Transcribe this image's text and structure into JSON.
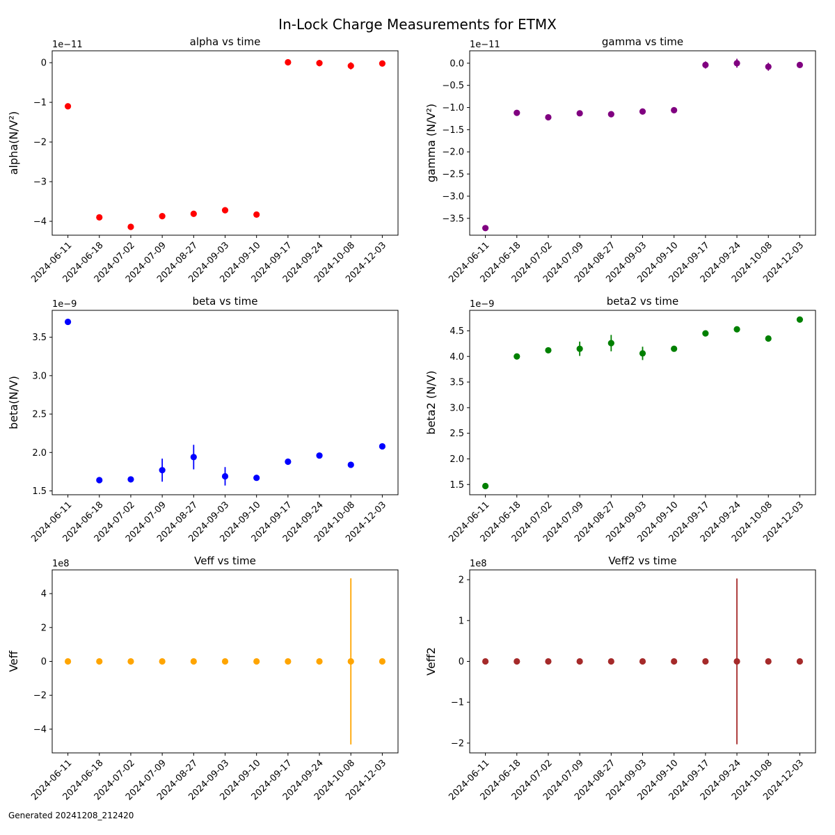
{
  "title": "In-Lock Charge Measurements for ETMX",
  "footer": "Generated 20241208_212420",
  "chart_data": [
    {
      "type": "scatter",
      "title": "alpha vs time",
      "ylabel": "alpha(N/V²)",
      "offset_text": "1e−11",
      "color": "#ff0000",
      "x": [
        "2024-06-11",
        "2024-06-18",
        "2024-07-02",
        "2024-07-09",
        "2024-08-27",
        "2024-09-03",
        "2024-09-10",
        "2024-09-17",
        "2024-09-24",
        "2024-10-08",
        "2024-12-03"
      ],
      "y": [
        -1.1,
        -3.9,
        -4.14,
        -3.87,
        -3.81,
        -3.72,
        -3.83,
        0.01,
        -0.01,
        -0.08,
        -0.02
      ],
      "yerr": [
        0.04,
        0.05,
        0.05,
        0.04,
        0.05,
        0.05,
        0.05,
        0.07,
        0.08,
        0.09,
        0.05
      ],
      "ylim": [
        -4.35,
        0.3
      ],
      "yticks": [
        0,
        -1,
        -2,
        -3,
        -4
      ],
      "ytick_labels": [
        "0",
        "−1",
        "−2",
        "−3",
        "−4"
      ]
    },
    {
      "type": "scatter",
      "title": "gamma vs time",
      "ylabel": "gamma (N/V²)",
      "offset_text": "1e−11",
      "color": "#800080",
      "x": [
        "2024-06-11",
        "2024-06-18",
        "2024-07-02",
        "2024-07-09",
        "2024-08-27",
        "2024-09-03",
        "2024-09-10",
        "2024-09-17",
        "2024-09-24",
        "2024-10-08",
        "2024-12-03"
      ],
      "y": [
        -3.72,
        -1.12,
        -1.22,
        -1.13,
        -1.15,
        -1.09,
        -1.06,
        -0.04,
        0.0,
        -0.08,
        -0.04
      ],
      "yerr": [
        0.03,
        0.03,
        0.03,
        0.03,
        0.03,
        0.03,
        0.03,
        0.08,
        0.1,
        0.09,
        0.04
      ],
      "ylim": [
        -3.88,
        0.28
      ],
      "yticks": [
        0,
        -0.5,
        -1,
        -1.5,
        -2,
        -2.5,
        -3,
        -3.5
      ],
      "ytick_labels": [
        "0.0",
        "−0.5",
        "−1.0",
        "−1.5",
        "−2.0",
        "−2.5",
        "−3.0",
        "−3.5"
      ]
    },
    {
      "type": "scatter",
      "title": "beta vs time",
      "ylabel": "beta(N/V)",
      "offset_text": "1e−9",
      "color": "#0000ff",
      "x": [
        "2024-06-11",
        "2024-06-18",
        "2024-07-02",
        "2024-07-09",
        "2024-08-27",
        "2024-09-03",
        "2024-09-10",
        "2024-09-17",
        "2024-09-24",
        "2024-10-08",
        "2024-12-03"
      ],
      "y": [
        3.7,
        1.64,
        1.65,
        1.77,
        1.94,
        1.69,
        1.67,
        1.88,
        1.96,
        1.84,
        2.08
      ],
      "yerr": [
        0.04,
        0.03,
        0.04,
        0.15,
        0.16,
        0.12,
        0.03,
        0.03,
        0.03,
        0.03,
        0.03
      ],
      "ylim": [
        1.45,
        3.85
      ],
      "yticks": [
        1.5,
        2.0,
        2.5,
        3.0,
        3.5
      ],
      "ytick_labels": [
        "1.5",
        "2.0",
        "2.5",
        "3.0",
        "3.5"
      ]
    },
    {
      "type": "scatter",
      "title": "beta2 vs time",
      "ylabel": "beta2 (N/V)",
      "offset_text": "1e−9",
      "color": "#008000",
      "x": [
        "2024-06-11",
        "2024-06-18",
        "2024-07-02",
        "2024-07-09",
        "2024-08-27",
        "2024-09-03",
        "2024-09-10",
        "2024-09-17",
        "2024-09-24",
        "2024-10-08",
        "2024-12-03"
      ],
      "y": [
        1.47,
        4.0,
        4.12,
        4.15,
        4.26,
        4.06,
        4.15,
        4.45,
        4.53,
        4.35,
        4.72
      ],
      "yerr": [
        0.03,
        0.03,
        0.03,
        0.14,
        0.16,
        0.13,
        0.03,
        0.03,
        0.03,
        0.03,
        0.03
      ],
      "ylim": [
        1.3,
        4.9
      ],
      "yticks": [
        1.5,
        2.0,
        2.5,
        3.0,
        3.5,
        4.0,
        4.5
      ],
      "ytick_labels": [
        "1.5",
        "2.0",
        "2.5",
        "3.0",
        "3.5",
        "4.0",
        "4.5"
      ]
    },
    {
      "type": "scatter",
      "title": "Veff vs time",
      "ylabel": "Veff",
      "offset_text": "1e8",
      "color": "#ffa500",
      "x": [
        "2024-06-11",
        "2024-06-18",
        "2024-07-02",
        "2024-07-09",
        "2024-08-27",
        "2024-09-03",
        "2024-09-10",
        "2024-09-17",
        "2024-09-24",
        "2024-10-08",
        "2024-12-03"
      ],
      "y": [
        0,
        0,
        0,
        0,
        0,
        0,
        0,
        0,
        0,
        0,
        0
      ],
      "yerr": [
        0.01,
        0.01,
        0.01,
        0.01,
        0.01,
        0.01,
        0.01,
        0.01,
        0.01,
        4.9,
        0.01
      ],
      "ylim": [
        -5.4,
        5.4
      ],
      "yticks": [
        4,
        2,
        0,
        -2,
        -4
      ],
      "ytick_labels": [
        "4",
        "2",
        "0",
        "−2",
        "−4"
      ]
    },
    {
      "type": "scatter",
      "title": "Veff2 vs time",
      "ylabel": "Veff2",
      "offset_text": "1e8",
      "color": "#a52a2a",
      "x": [
        "2024-06-11",
        "2024-06-18",
        "2024-07-02",
        "2024-07-09",
        "2024-08-27",
        "2024-09-03",
        "2024-09-10",
        "2024-09-17",
        "2024-09-24",
        "2024-10-08",
        "2024-12-03"
      ],
      "y": [
        0,
        0,
        0,
        0,
        0,
        0,
        0,
        0,
        0,
        0,
        0
      ],
      "yerr": [
        0.01,
        0.01,
        0.01,
        0.01,
        0.01,
        0.01,
        0.01,
        0.01,
        2.03,
        0.01,
        0.01
      ],
      "ylim": [
        -2.24,
        2.24
      ],
      "yticks": [
        2,
        1,
        0,
        -1,
        -2
      ],
      "ytick_labels": [
        "2",
        "1",
        "0",
        "−1",
        "−2"
      ]
    }
  ]
}
